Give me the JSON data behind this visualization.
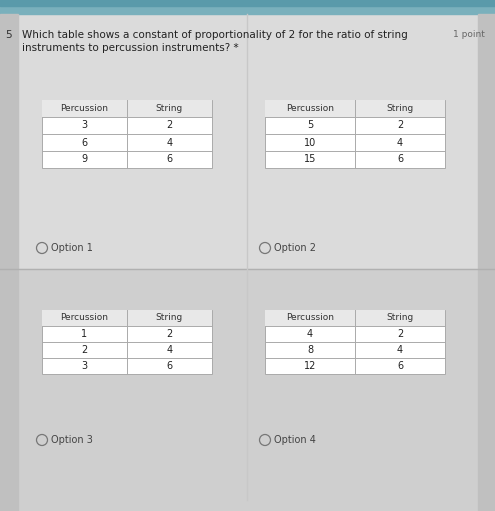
{
  "question_number": "5",
  "question_text": "Which table shows a constant of proportionality of 2 for the ratio of string",
  "question_text2": "instruments to percussion instruments? *",
  "point_label": "1 point",
  "bg_top": "#d8d8d8",
  "bg_bottom": "#cbcbcb",
  "browser_bar": "#8ab0b8",
  "options": [
    {
      "label": "Option 1",
      "headers": [
        "Percussion",
        "String"
      ],
      "rows": [
        [
          "3",
          "2"
        ],
        [
          "6",
          "4"
        ],
        [
          "9",
          "6"
        ]
      ]
    },
    {
      "label": "Option 2",
      "headers": [
        "Percussion",
        "String"
      ],
      "rows": [
        [
          "5",
          "2"
        ],
        [
          "10",
          "4"
        ],
        [
          "15",
          "6"
        ]
      ]
    },
    {
      "label": "Option 3",
      "headers": [
        "Percussion",
        "String"
      ],
      "rows": [
        [
          "1",
          "2"
        ],
        [
          "2",
          "4"
        ],
        [
          "3",
          "6"
        ]
      ]
    },
    {
      "label": "Option 4",
      "headers": [
        "Percussion",
        "String"
      ],
      "rows": [
        [
          "4",
          "2"
        ],
        [
          "8",
          "4"
        ],
        [
          "12",
          "6"
        ]
      ]
    }
  ]
}
